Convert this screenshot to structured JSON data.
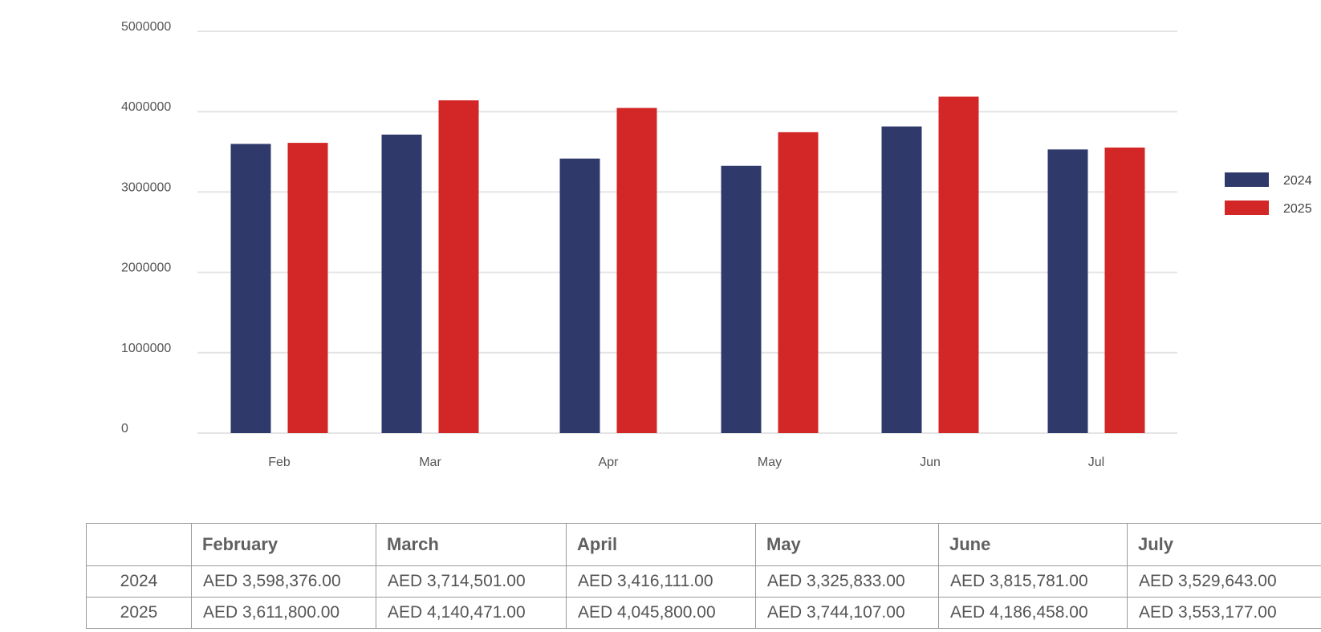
{
  "chart_data": {
    "type": "bar",
    "categories": [
      "Feb",
      "Mar",
      "Apr",
      "May",
      "Jun",
      "Jul"
    ],
    "series": [
      {
        "name": "2024",
        "values": [
          3598376,
          3714501,
          3416111,
          3325833,
          3815781,
          3529643
        ],
        "color": "#2f3a6b"
      },
      {
        "name": "2025",
        "values": [
          3611800,
          4140471,
          4045800,
          3744107,
          4186458,
          3553177
        ],
        "color": "#d32626"
      }
    ],
    "ylim": [
      0,
      5000000
    ],
    "yticks": [
      "0",
      "1000000",
      "2000000",
      "3000000",
      "4000000",
      "5000000"
    ],
    "grid": true,
    "legend_position": "right"
  },
  "table": {
    "headers": [
      "",
      "February",
      "March",
      "April",
      "May",
      "June",
      "July"
    ],
    "rows": [
      {
        "label": "2024",
        "cells": [
          "AED 3,598,376.00",
          "AED 3,714,501.00",
          "AED 3,416,111.00",
          "AED 3,325,833.00",
          "AED 3,815,781.00",
          "AED 3,529,643.00"
        ]
      },
      {
        "label": "2025",
        "cells": [
          "AED 3,611,800.00",
          "AED 4,140,471.00",
          "AED 4,045,800.00",
          "AED 3,744,107.00",
          "AED 4,186,458.00",
          "AED 3,553,177.00"
        ]
      }
    ]
  }
}
